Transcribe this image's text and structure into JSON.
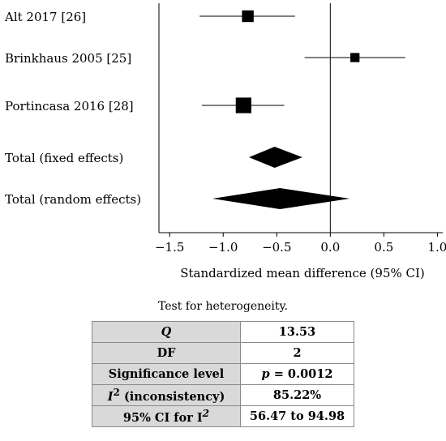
{
  "chart_data": {
    "type": "forest",
    "xlabel": "Standardized mean difference (95% CI)",
    "xlim": [
      -1.6,
      1.05
    ],
    "xticks": [
      -1.5,
      -1.0,
      -0.5,
      0.0,
      0.5,
      1.0
    ],
    "xtick_labels": [
      "−1.5",
      "−1.0",
      "−0.5",
      "0.0",
      "0.5",
      "1.0"
    ],
    "grid": false,
    "studies": [
      {
        "label": "Alt 2017 [26]",
        "estimate": -0.77,
        "lower": -1.22,
        "upper": -0.33,
        "weight": 0.35
      },
      {
        "label": "Brinkhaus 2005 [25]",
        "estimate": 0.23,
        "lower": -0.24,
        "upper": 0.7,
        "weight": 0.22
      },
      {
        "label": "Portincasa 2016 [28]",
        "estimate": -0.81,
        "lower": -1.2,
        "upper": -0.43,
        "weight": 0.55
      }
    ],
    "pooled": [
      {
        "label": "Total (fixed effects)",
        "estimate": -0.52,
        "lower": -0.76,
        "upper": -0.26
      },
      {
        "label": "Total (random effects)",
        "estimate": -0.47,
        "lower": -1.1,
        "upper": 0.18
      }
    ]
  },
  "heterogeneity": {
    "caption": "Test for heterogeneity.",
    "rows": [
      {
        "label": "Q",
        "label_sup": "",
        "label_rest": "",
        "value": "13.53"
      },
      {
        "label": "DF",
        "label_sup": "",
        "label_rest": "",
        "value": "2"
      },
      {
        "label": "Significance level",
        "label_sup": "",
        "label_rest": "",
        "value": "p = 0.0012"
      },
      {
        "label": "I",
        "label_sup": "2",
        "label_rest": " (inconsistency)",
        "value": "85.22%"
      },
      {
        "label": "95% CI for I",
        "label_sup": "2",
        "label_rest": "",
        "value": "56.47 to 94.98"
      }
    ]
  }
}
